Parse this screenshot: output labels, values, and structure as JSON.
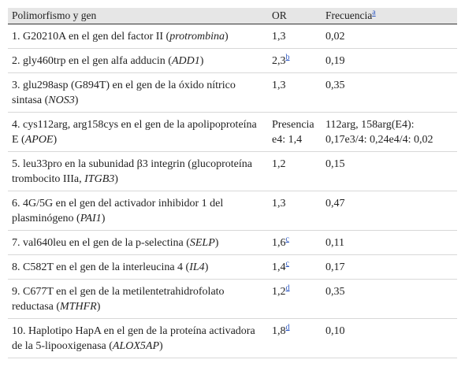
{
  "table": {
    "header": [
      "Polimorfismo y gen",
      "OR",
      "Frecuencia"
    ],
    "header_note": "a",
    "rows": [
      {
        "gen": [
          "1. G20210A en el gen del factor II (",
          "protrombina",
          ")"
        ],
        "or": "1,3",
        "freq": "0,02"
      },
      {
        "gen": [
          "2. gly460trp en el gen alfa adducin (",
          "ADD1",
          ")"
        ],
        "or": "2,3",
        "or_note": "b",
        "freq": "0,19"
      },
      {
        "gen": [
          "3. glu298asp (G894T) en el gen de la óxido nítrico sintasa (",
          "NOS3",
          ")"
        ],
        "or": "1,3",
        "freq": "0,35"
      },
      {
        "gen": [
          "4. cys112arg, arg158cys en el gen de la apolipoproteína E (",
          "APOE",
          ")"
        ],
        "or": "Presencia e4: 1,4",
        "freq": "112arg, 158arg(E4): 0,17e3/4: 0,24e4/4: 0,02"
      },
      {
        "gen": [
          "5. leu33pro en la subunidad β3 integrin (glucoproteína trombocito IIIa, ",
          "ITGB3",
          ")"
        ],
        "or": "1,2",
        "freq": "0,15"
      },
      {
        "gen": [
          "6. 4G/5G en el gen del activador inhibidor 1 del plasminógeno (",
          "PAI1",
          ")"
        ],
        "or": "1,3",
        "freq": "0,47"
      },
      {
        "gen": [
          "7. val640leu en el gen de la p-selectina (",
          "SELP",
          ")"
        ],
        "or": "1,6",
        "or_note": "c",
        "freq": "0,11"
      },
      {
        "gen": [
          "8. C582T en el gen de la interleucina 4 (",
          "IL4",
          ")"
        ],
        "or": "1,4",
        "or_note": "c",
        "freq": "0,17"
      },
      {
        "gen": [
          "9. C677T en el gen de la metilentetrahidrofolato reductasa (",
          "MTHFR",
          ")"
        ],
        "or": "1,2",
        "or_note": "d",
        "freq": "0,35"
      },
      {
        "gen": [
          "10. Haplotipo HapA en el gen de la proteína activadora de la 5-lipooxigenasa (",
          "ALOX5AP",
          ")"
        ],
        "or": "1,8",
        "or_note": "d",
        "freq": "0,10"
      }
    ]
  }
}
